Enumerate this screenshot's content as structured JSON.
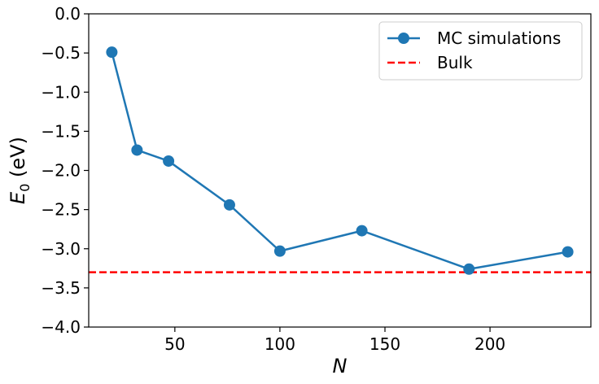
{
  "chart_data": {
    "type": "line",
    "xlabel": "N",
    "ylabel_main": "E",
    "ylabel_sub": "0",
    "ylabel_unit": " (eV)",
    "xlim": [
      9,
      248
    ],
    "ylim": [
      -4.0,
      0.0
    ],
    "xticks": [
      50,
      100,
      150,
      200
    ],
    "xtick_labels": [
      "50",
      "100",
      "150",
      "200"
    ],
    "yticks": [
      0.0,
      -0.5,
      -1.0,
      -1.5,
      -2.0,
      -2.5,
      -3.0,
      -3.5,
      -4.0
    ],
    "ytick_labels": [
      "0.0",
      "−0.5",
      "−1.0",
      "−1.5",
      "−2.0",
      "−2.5",
      "−3.0",
      "−3.5",
      "−4.0"
    ],
    "grid": false,
    "legend_position": "top-right",
    "series": [
      {
        "name": "MC simulations",
        "style": "line-marker",
        "color": "#1f77b4",
        "x": [
          20,
          32,
          47,
          76,
          100,
          139,
          190,
          237
        ],
        "y": [
          -0.49,
          -1.74,
          -1.88,
          -2.44,
          -3.03,
          -2.77,
          -3.26,
          -3.04
        ]
      },
      {
        "name": "Bulk",
        "style": "dashed-hline",
        "color": "#ff0000",
        "y": -3.3
      }
    ]
  }
}
